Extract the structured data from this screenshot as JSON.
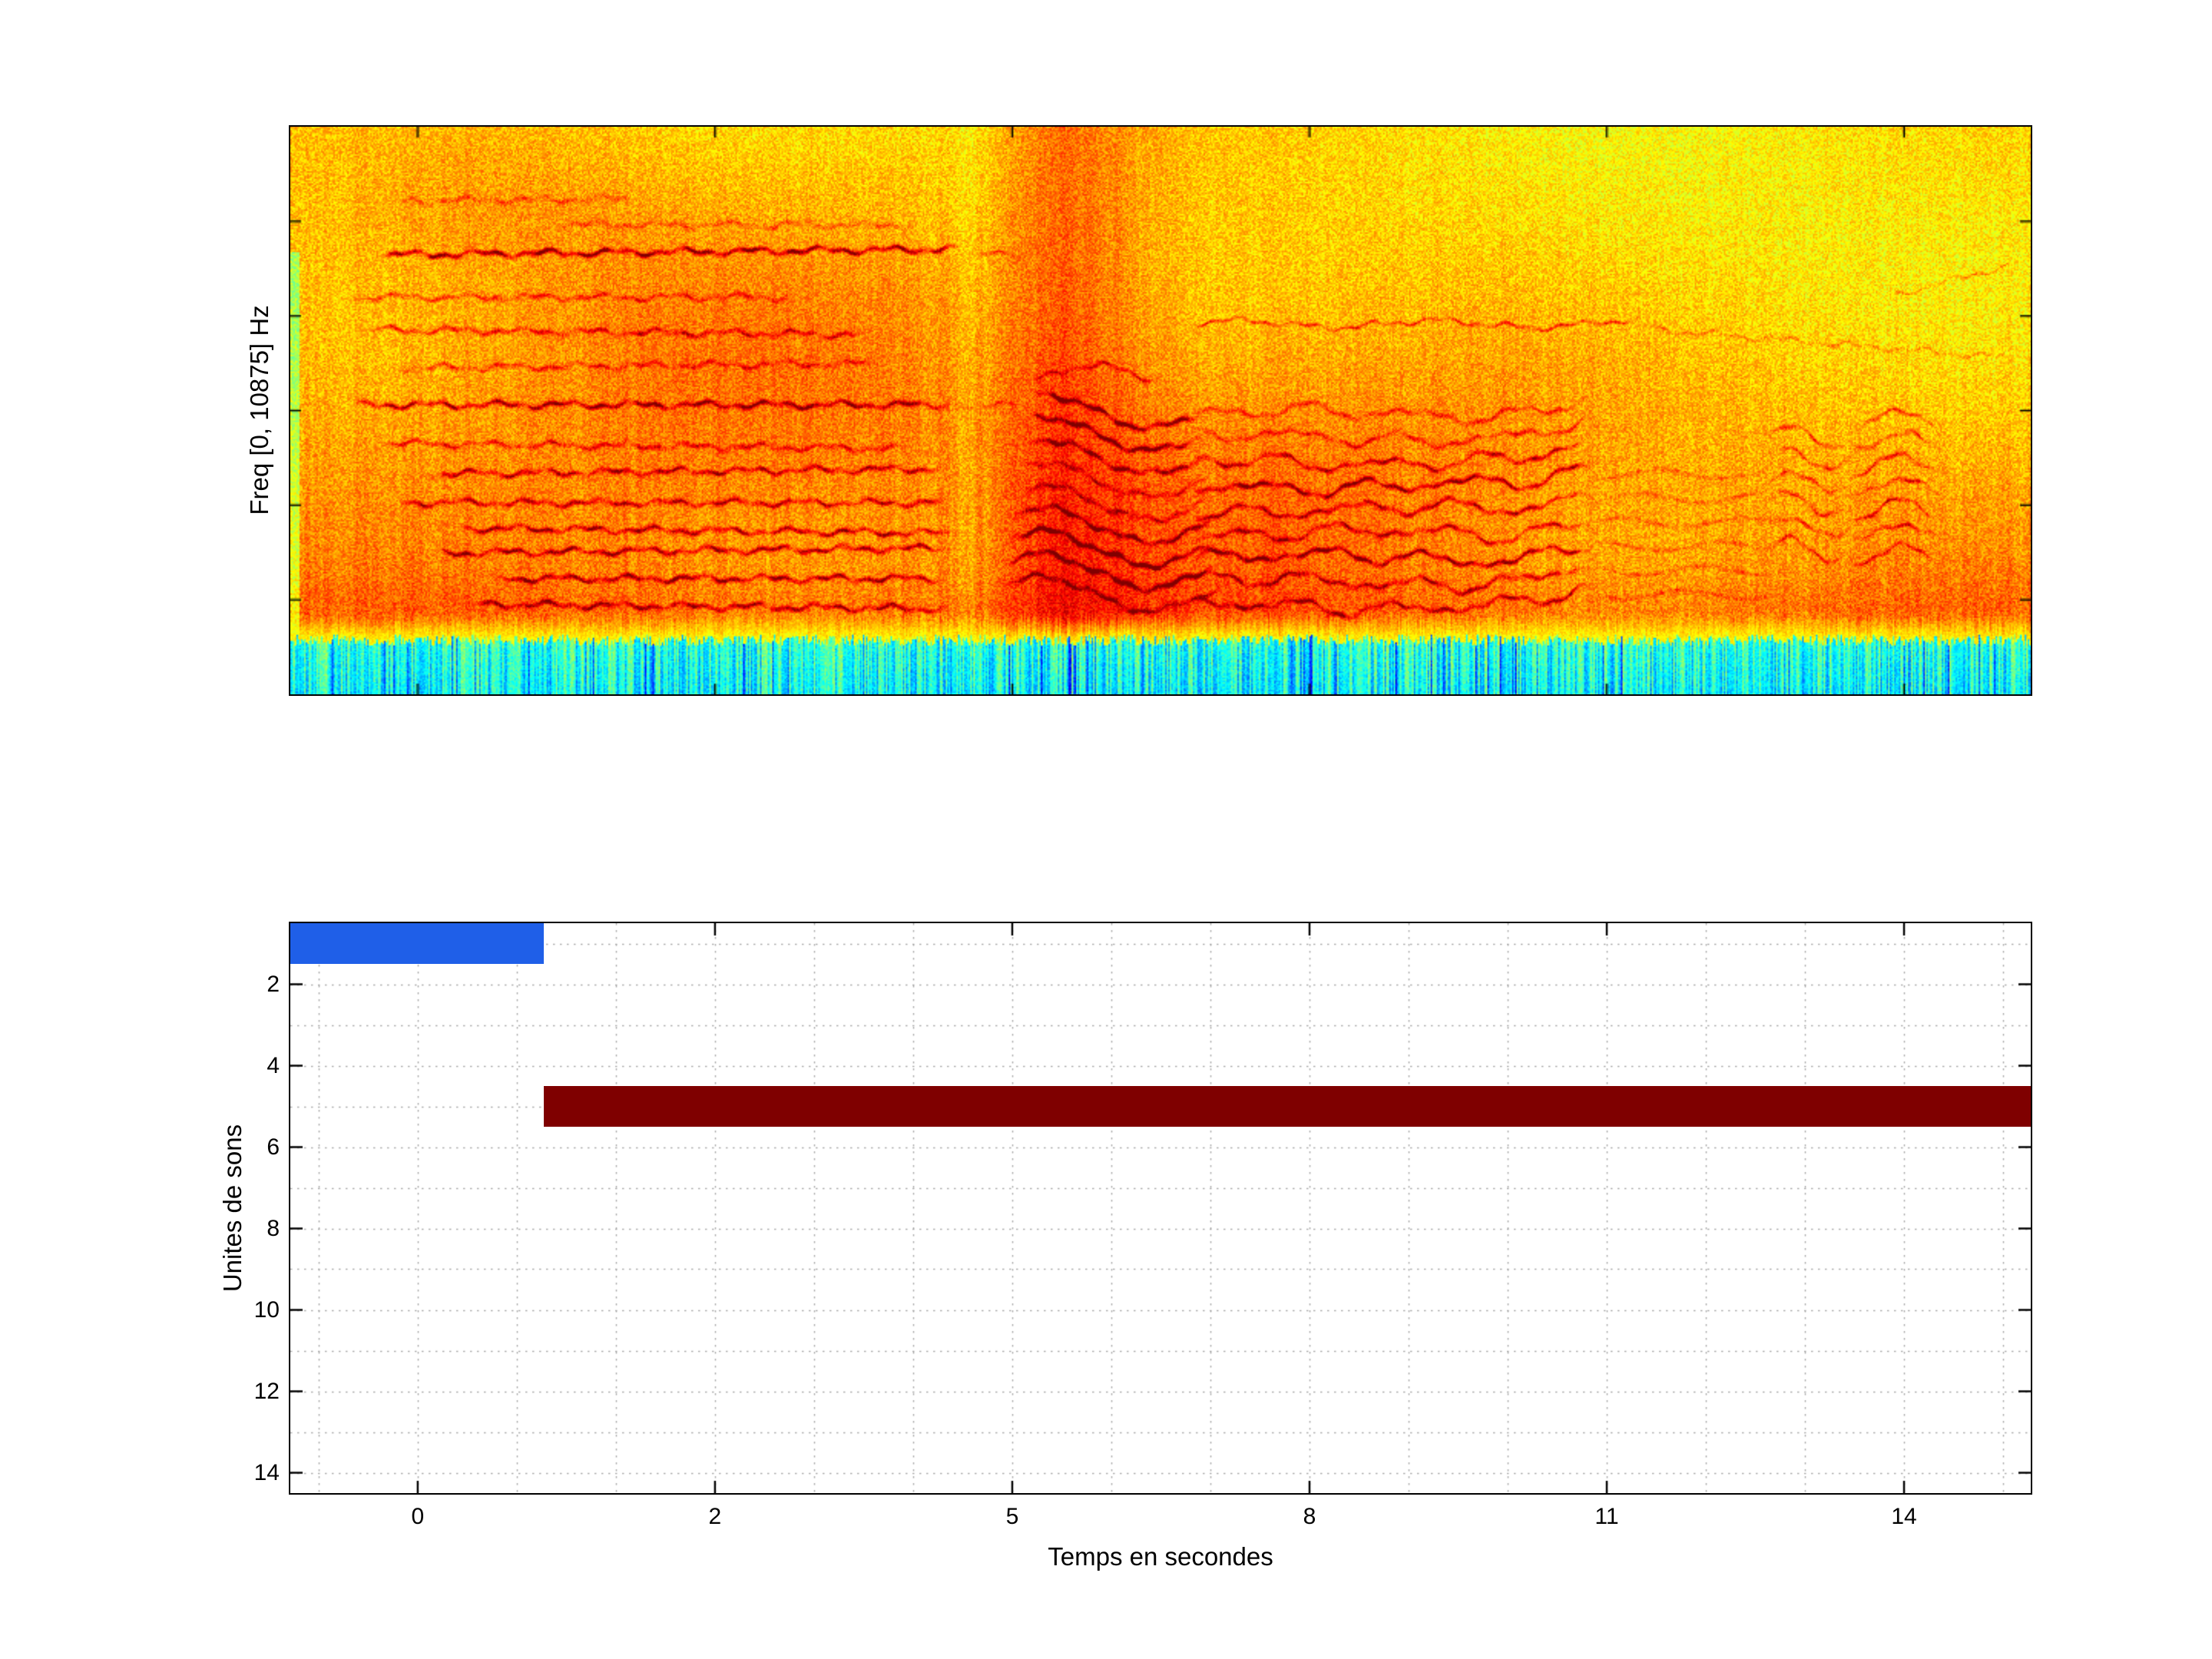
{
  "chart_data": [
    {
      "type": "heatmap",
      "subtype": "spectrogram",
      "ylabel": "Freq [0, 10875] Hz",
      "freq_range_hz": [
        0,
        10875
      ],
      "colormap": "jet",
      "features": [
        "dense horizontal harmonic stack from start to about 4.3 s",
        "loud broadband syllable near 5-6.2 s with chevron-shaped harmonics",
        "sustained wavy harmonic series from 6.5 s to about 10.5 s in lower third",
        "weaker wavy harmonic burst around 12.3-13.6 s",
        "continuous cyan low-energy noise band along the bottom edge"
      ]
    },
    {
      "type": "gantt",
      "xlabel": "Temps en secondes",
      "ylabel": "Unites de sons",
      "x_tick_labels": [
        "0",
        "2",
        "5",
        "8",
        "11",
        "14"
      ],
      "y_tick_labels": [
        "2",
        "4",
        "6",
        "8",
        "10",
        "12",
        "14"
      ],
      "ylim": [
        0.5,
        14.5
      ],
      "y_direction": "reversed",
      "grid": "dotted",
      "bars": [
        {
          "unit": 1,
          "start_s": -1.2,
          "end_s": 0.85,
          "color": "#1f5fe8"
        },
        {
          "unit": 5,
          "start_s": 0.85,
          "end_s": 15.3,
          "color": "#7f0000"
        }
      ]
    }
  ]
}
